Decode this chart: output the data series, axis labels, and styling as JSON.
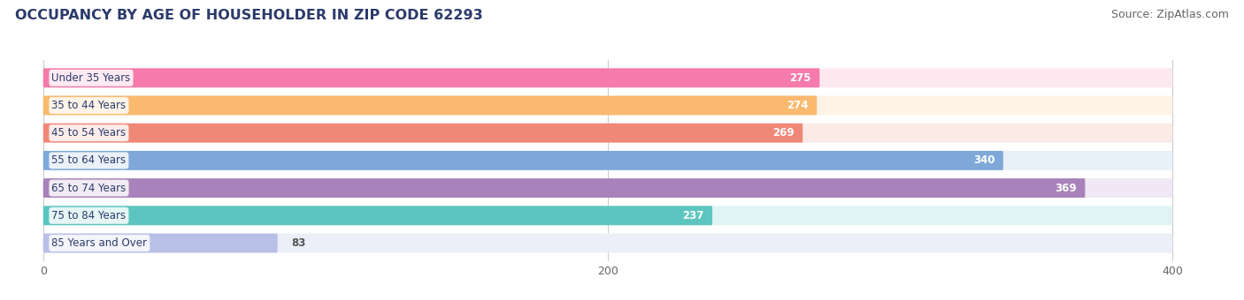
{
  "title": "OCCUPANCY BY AGE OF HOUSEHOLDER IN ZIP CODE 62293",
  "source": "Source: ZipAtlas.com",
  "categories": [
    "Under 35 Years",
    "35 to 44 Years",
    "45 to 54 Years",
    "55 to 64 Years",
    "65 to 74 Years",
    "75 to 84 Years",
    "85 Years and Over"
  ],
  "values": [
    275,
    274,
    269,
    340,
    369,
    237,
    83
  ],
  "bar_colors": [
    "#F47BAA",
    "#F9B96E",
    "#F08878",
    "#7EA8D8",
    "#A882BA",
    "#5DC5BF",
    "#B8C0E8"
  ],
  "bar_bg_colors": [
    "#FDE8F0",
    "#FEF3E6",
    "#FCEAE6",
    "#E8F0F8",
    "#F0E8F4",
    "#E0F4F4",
    "#ECEEF8"
  ],
  "data_max": 400,
  "xlim_left": -10,
  "xlim_right": 420,
  "xticks": [
    0,
    200,
    400
  ],
  "title_fontsize": 11.5,
  "source_fontsize": 9,
  "label_fontsize": 8.5,
  "value_fontsize": 8.5,
  "background_color": "#ffffff",
  "title_color": "#2B3A6B",
  "source_color": "#666666",
  "label_color": "#2B3A6B",
  "value_color_inside": "#ffffff",
  "value_color_outside": "#555555",
  "grid_color": "#cccccc",
  "label_box_color": "#ffffff",
  "bar_height": 0.7,
  "rounding_size": 0.15
}
